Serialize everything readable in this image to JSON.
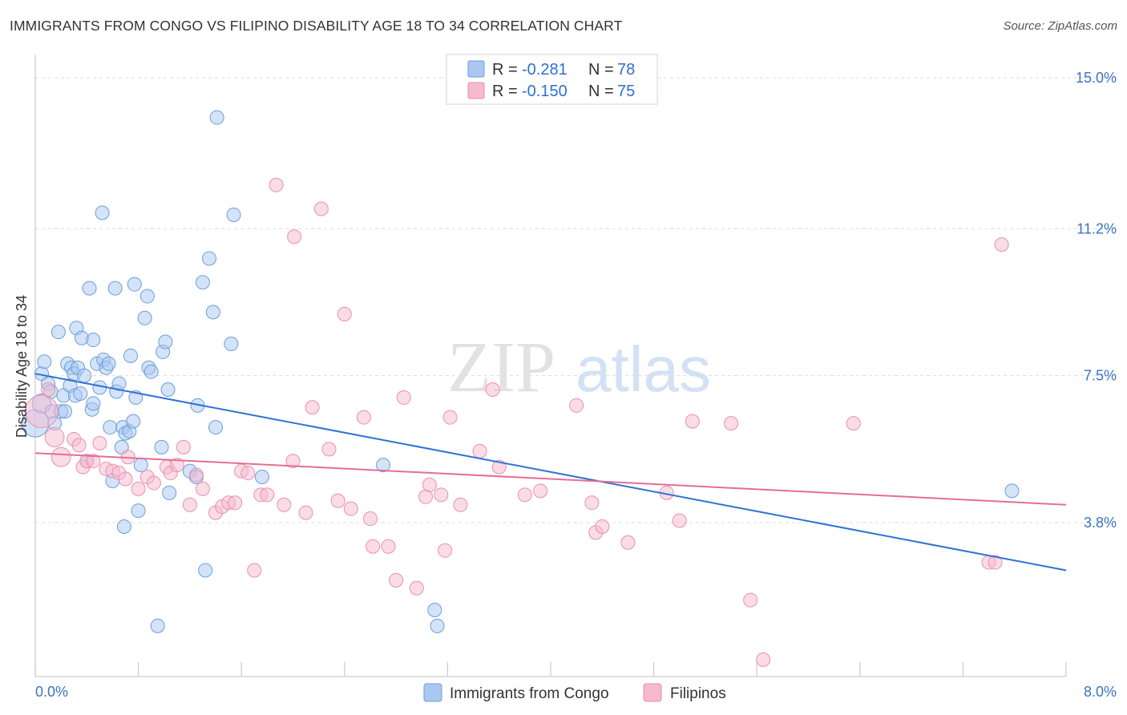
{
  "title": "IMMIGRANTS FROM CONGO VS FILIPINO DISABILITY AGE 18 TO 34 CORRELATION CHART",
  "source": "Source: ZipAtlas.com",
  "watermark": {
    "zip": "ZIP",
    "atlas": "atlas"
  },
  "colors": {
    "blue_fill": "#a9c8f0",
    "blue_stroke": "#6a9fde",
    "blue_line": "#2f72d4",
    "pink_fill": "#f6b9cd",
    "pink_stroke": "#ea8fae",
    "pink_line": "#e46e98",
    "grid": "#dddddd",
    "tick_label": "#3a73c4"
  },
  "legend": {
    "rows": [
      {
        "r_label": "R = ",
        "r_value": "-0.281",
        "n_label": "N = ",
        "n_value": "78"
      },
      {
        "r_label": "R = ",
        "r_value": "-0.150",
        "n_label": "N = ",
        "n_value": "75"
      }
    ]
  },
  "bottom_legend": [
    "Immigrants from Congo",
    "Filipinos"
  ],
  "chart_data": {
    "type": "scatter",
    "title": "IMMIGRANTS FROM CONGO VS FILIPINO DISABILITY AGE 18 TO 34 CORRELATION CHART",
    "xlabel": "",
    "ylabel": "Disability Age 18 to 34",
    "xlim": [
      0,
      8
    ],
    "ylim": [
      0,
      15.5
    ],
    "x_tick_labels": [
      {
        "value": 0,
        "label": "0.0%"
      },
      {
        "value": 8,
        "label": "8.0%"
      }
    ],
    "y_tick_labels": [
      {
        "value": 3.8,
        "label": "3.8%"
      },
      {
        "value": 7.5,
        "label": "7.5%"
      },
      {
        "value": 11.2,
        "label": "11.2%"
      },
      {
        "value": 15.0,
        "label": "15.0%"
      }
    ],
    "series": [
      {
        "name": "Immigrants from Congo",
        "r": -0.281,
        "n": 78,
        "trend": {
          "x": [
            0,
            8
          ],
          "y": [
            7.55,
            2.6
          ]
        },
        "points": [
          [
            0.0,
            6.3,
            2
          ],
          [
            0.05,
            6.8,
            1.4
          ],
          [
            0.05,
            7.55,
            1
          ],
          [
            0.07,
            7.85,
            1
          ],
          [
            0.1,
            7.3,
            1
          ],
          [
            0.12,
            7.1,
            1
          ],
          [
            0.13,
            6.6,
            1
          ],
          [
            0.15,
            6.3,
            1
          ],
          [
            0.18,
            8.6,
            1
          ],
          [
            0.2,
            6.6,
            1
          ],
          [
            0.22,
            7.0,
            1
          ],
          [
            0.23,
            6.6,
            1
          ],
          [
            0.25,
            7.8,
            1
          ],
          [
            0.27,
            7.25,
            1
          ],
          [
            0.28,
            7.7,
            1
          ],
          [
            0.3,
            7.55,
            1
          ],
          [
            0.31,
            7.0,
            1
          ],
          [
            0.32,
            8.7,
            1
          ],
          [
            0.33,
            7.7,
            1
          ],
          [
            0.35,
            7.05,
            1
          ],
          [
            0.36,
            8.45,
            1
          ],
          [
            0.38,
            7.5,
            1
          ],
          [
            0.4,
            5.35,
            1
          ],
          [
            0.42,
            9.7,
            1
          ],
          [
            0.44,
            6.65,
            1
          ],
          [
            0.45,
            6.8,
            1
          ],
          [
            0.45,
            8.4,
            1
          ],
          [
            0.48,
            7.8,
            1
          ],
          [
            0.5,
            7.2,
            1
          ],
          [
            0.52,
            11.6,
            1
          ],
          [
            0.53,
            7.9,
            1
          ],
          [
            0.55,
            7.7,
            1
          ],
          [
            0.57,
            7.8,
            1
          ],
          [
            0.58,
            6.2,
            1
          ],
          [
            0.6,
            4.85,
            1
          ],
          [
            0.62,
            9.7,
            1
          ],
          [
            0.63,
            7.1,
            1
          ],
          [
            0.65,
            7.3,
            1
          ],
          [
            0.67,
            5.7,
            1
          ],
          [
            0.68,
            6.2,
            1
          ],
          [
            0.69,
            3.7,
            1
          ],
          [
            0.7,
            6.05,
            1
          ],
          [
            0.73,
            6.1,
            1
          ],
          [
            0.74,
            8.0,
            1
          ],
          [
            0.76,
            6.35,
            1
          ],
          [
            0.77,
            9.8,
            1
          ],
          [
            0.78,
            6.95,
            1
          ],
          [
            0.8,
            4.1,
            1
          ],
          [
            0.82,
            5.25,
            1
          ],
          [
            0.85,
            8.95,
            1
          ],
          [
            0.87,
            9.5,
            1
          ],
          [
            0.88,
            7.7,
            1
          ],
          [
            0.9,
            7.6,
            1
          ],
          [
            0.95,
            1.2,
            1
          ],
          [
            0.98,
            5.7,
            1
          ],
          [
            0.99,
            8.1,
            1
          ],
          [
            1.01,
            8.35,
            1
          ],
          [
            1.03,
            7.15,
            1
          ],
          [
            1.04,
            4.55,
            1
          ],
          [
            1.2,
            5.1,
            1
          ],
          [
            1.25,
            4.95,
            1
          ],
          [
            1.26,
            6.75,
            1
          ],
          [
            1.3,
            9.85,
            1
          ],
          [
            1.32,
            2.6,
            1
          ],
          [
            1.35,
            10.45,
            1
          ],
          [
            1.38,
            9.1,
            1
          ],
          [
            1.4,
            6.2,
            1
          ],
          [
            1.41,
            14.0,
            1
          ],
          [
            1.52,
            8.3,
            1
          ],
          [
            1.54,
            11.55,
            1
          ],
          [
            1.76,
            4.95,
            1
          ],
          [
            2.7,
            5.25,
            1
          ],
          [
            3.1,
            1.6,
            1
          ],
          [
            3.12,
            1.2,
            1
          ],
          [
            7.58,
            4.6,
            1
          ]
        ]
      },
      {
        "name": "Filipinos",
        "r": -0.15,
        "n": 75,
        "trend": {
          "x": [
            0,
            8
          ],
          "y": [
            5.55,
            4.25
          ]
        },
        "points": [
          [
            0.05,
            6.6,
            2.4
          ],
          [
            0.1,
            7.15,
            1
          ],
          [
            0.15,
            5.95,
            1.4
          ],
          [
            0.2,
            5.45,
            1.4
          ],
          [
            0.3,
            5.9,
            1
          ],
          [
            0.34,
            5.75,
            1
          ],
          [
            0.37,
            5.2,
            1
          ],
          [
            0.4,
            5.35,
            1
          ],
          [
            0.45,
            5.35,
            1
          ],
          [
            0.5,
            5.8,
            1
          ],
          [
            0.55,
            5.15,
            1
          ],
          [
            0.6,
            5.1,
            1
          ],
          [
            0.65,
            5.05,
            1
          ],
          [
            0.7,
            4.9,
            1
          ],
          [
            0.72,
            5.45,
            1
          ],
          [
            0.8,
            4.65,
            1
          ],
          [
            0.87,
            4.95,
            1
          ],
          [
            0.92,
            4.8,
            1
          ],
          [
            1.02,
            5.2,
            1
          ],
          [
            1.05,
            5.05,
            1
          ],
          [
            1.1,
            5.25,
            1
          ],
          [
            1.15,
            5.7,
            1
          ],
          [
            1.2,
            4.25,
            1
          ],
          [
            1.25,
            5.0,
            1
          ],
          [
            1.3,
            4.65,
            1
          ],
          [
            1.4,
            4.05,
            1
          ],
          [
            1.45,
            4.2,
            1
          ],
          [
            1.5,
            4.3,
            1
          ],
          [
            1.55,
            4.3,
            1
          ],
          [
            1.6,
            5.1,
            1
          ],
          [
            1.65,
            5.05,
            1
          ],
          [
            1.7,
            2.6,
            1
          ],
          [
            1.75,
            4.5,
            1
          ],
          [
            1.8,
            4.5,
            1
          ],
          [
            1.87,
            12.3,
            1
          ],
          [
            1.93,
            4.25,
            1
          ],
          [
            2.0,
            5.35,
            1
          ],
          [
            2.01,
            11.0,
            1
          ],
          [
            2.1,
            4.05,
            1
          ],
          [
            2.15,
            6.7,
            1
          ],
          [
            2.22,
            11.7,
            1
          ],
          [
            2.28,
            5.65,
            1
          ],
          [
            2.35,
            4.35,
            1
          ],
          [
            2.4,
            9.05,
            1
          ],
          [
            2.45,
            4.15,
            1
          ],
          [
            2.55,
            6.45,
            1
          ],
          [
            2.6,
            3.9,
            1
          ],
          [
            2.62,
            3.2,
            1
          ],
          [
            2.74,
            3.2,
            1
          ],
          [
            2.8,
            2.35,
            1
          ],
          [
            2.86,
            6.95,
            1
          ],
          [
            2.96,
            2.15,
            1
          ],
          [
            3.03,
            4.45,
            1
          ],
          [
            3.06,
            4.75,
            1
          ],
          [
            3.15,
            4.5,
            1
          ],
          [
            3.18,
            3.1,
            1
          ],
          [
            3.22,
            6.45,
            1
          ],
          [
            3.3,
            4.25,
            1
          ],
          [
            3.45,
            5.6,
            1
          ],
          [
            3.55,
            7.15,
            1
          ],
          [
            3.6,
            5.2,
            1
          ],
          [
            3.8,
            4.5,
            1
          ],
          [
            3.92,
            4.6,
            1
          ],
          [
            4.2,
            6.75,
            1
          ],
          [
            4.32,
            4.3,
            1
          ],
          [
            4.35,
            3.55,
            1
          ],
          [
            4.4,
            3.7,
            1
          ],
          [
            4.6,
            3.3,
            1
          ],
          [
            4.9,
            4.55,
            1
          ],
          [
            5.0,
            3.85,
            1
          ],
          [
            5.1,
            6.35,
            1
          ],
          [
            5.4,
            6.3,
            1
          ],
          [
            5.55,
            1.85,
            1
          ],
          [
            5.65,
            0.35,
            1
          ],
          [
            6.35,
            6.3,
            1
          ],
          [
            7.4,
            2.8,
            1
          ],
          [
            7.45,
            2.8,
            1
          ],
          [
            7.5,
            10.8,
            1
          ]
        ]
      }
    ]
  }
}
